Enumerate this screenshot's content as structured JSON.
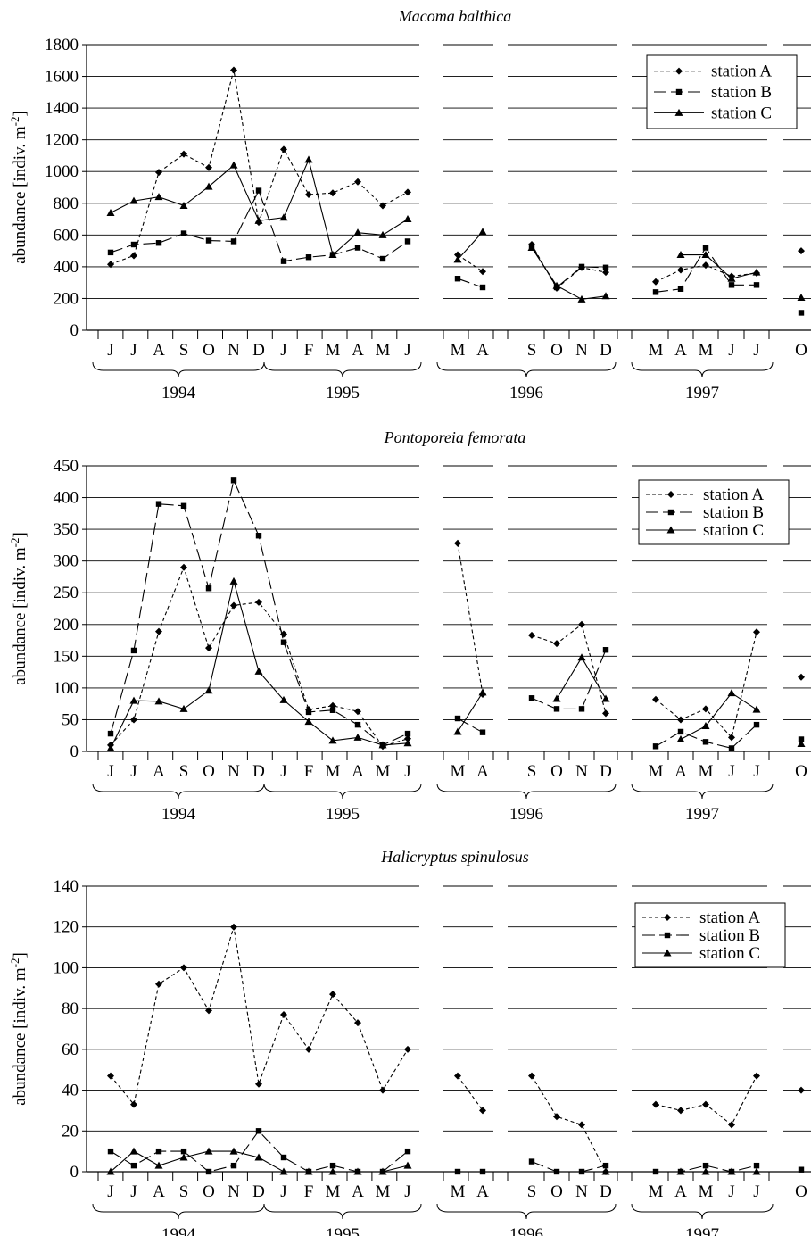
{
  "figure": {
    "ylabel_prefix": "abundance [indiv. m",
    "ylabel_exp": "-2",
    "ylabel_suffix": "]"
  },
  "chart_data": [
    {
      "type": "line",
      "title": "Macoma balthica",
      "ylabel": "abundance [indiv. m-2]",
      "ylim": [
        0,
        1800
      ],
      "yticks": [
        0,
        200,
        400,
        600,
        800,
        1000,
        1200,
        1400,
        1600,
        1800
      ],
      "grid": true,
      "legend": "top-right",
      "month_labels": [
        "J",
        "J",
        "A",
        "S",
        "O",
        "N",
        "D",
        "J",
        "F",
        "M",
        "A",
        "M",
        "J",
        "M",
        "A",
        "S",
        "O",
        "N",
        "D",
        "M",
        "A",
        "M",
        "J",
        "J",
        "O"
      ],
      "year_labels": [
        "1994",
        "1995",
        "1996",
        "1997"
      ],
      "series": [
        {
          "name": "station A",
          "marker": "diamond",
          "dash": "dotted",
          "values": [
            415,
            470,
            995,
            1110,
            1025,
            1640,
            680,
            1140,
            855,
            865,
            935,
            785,
            870,
            475,
            370,
            540,
            265,
            395,
            365,
            305,
            380,
            410,
            340,
            360,
            500
          ]
        },
        {
          "name": "station B",
          "marker": "square",
          "dash": "dashed",
          "values": [
            490,
            540,
            550,
            610,
            565,
            560,
            880,
            435,
            460,
            475,
            520,
            450,
            560,
            325,
            270,
            530,
            270,
            400,
            395,
            240,
            260,
            520,
            285,
            285,
            110
          ]
        },
        {
          "name": "station C",
          "marker": "triangle",
          "dash": "solid",
          "values": [
            740,
            815,
            840,
            785,
            905,
            1040,
            690,
            710,
            1075,
            475,
            615,
            600,
            700,
            445,
            620,
            520,
            280,
            195,
            215,
            null,
            475,
            475,
            325,
            365,
            205
          ]
        }
      ]
    },
    {
      "type": "line",
      "title": "Pontoporeia femorata",
      "ylabel": "abundance [indiv. m-2]",
      "ylim": [
        0,
        450
      ],
      "yticks": [
        0,
        50,
        100,
        150,
        200,
        250,
        300,
        350,
        400,
        450
      ],
      "grid": true,
      "legend": "top-right",
      "month_labels": [
        "J",
        "J",
        "A",
        "S",
        "O",
        "N",
        "D",
        "J",
        "F",
        "M",
        "A",
        "M",
        "J",
        "M",
        "A",
        "S",
        "O",
        "N",
        "D",
        "M",
        "A",
        "M",
        "J",
        "J",
        "O"
      ],
      "year_labels": [
        "1994",
        "1995",
        "1996",
        "1997"
      ],
      "series": [
        {
          "name": "station A",
          "marker": "diamond",
          "dash": "dotted",
          "values": [
            10,
            50,
            189,
            290,
            163,
            230,
            235,
            185,
            66,
            72,
            63,
            8,
            20,
            328,
            90,
            183,
            170,
            200,
            60,
            82,
            50,
            67,
            22,
            188,
            117
          ]
        },
        {
          "name": "station B",
          "marker": "square",
          "dash": "dashed",
          "values": [
            28,
            159,
            390,
            387,
            257,
            427,
            340,
            172,
            62,
            65,
            42,
            10,
            28,
            52,
            30,
            84,
            67,
            67,
            160,
            8,
            31,
            15,
            5,
            42,
            19
          ]
        },
        {
          "name": "station C",
          "marker": "triangle",
          "dash": "solid",
          "values": [
            5,
            80,
            79,
            67,
            96,
            268,
            126,
            81,
            47,
            17,
            22,
            10,
            13,
            31,
            93,
            null,
            83,
            148,
            83,
            null,
            19,
            40,
            92,
            66,
            12
          ]
        }
      ]
    },
    {
      "type": "line",
      "title": "Halicryptus spinulosus",
      "ylabel": "abundance [indiv. m-2]",
      "ylim": [
        0,
        140
      ],
      "yticks": [
        0,
        20,
        40,
        60,
        80,
        100,
        120,
        140
      ],
      "grid": true,
      "legend": "top-right",
      "month_labels": [
        "J",
        "J",
        "A",
        "S",
        "O",
        "N",
        "D",
        "J",
        "F",
        "M",
        "A",
        "M",
        "J",
        "M",
        "A",
        "S",
        "O",
        "N",
        "D",
        "M",
        "A",
        "M",
        "J",
        "J",
        "O"
      ],
      "year_labels": [
        "1994",
        "1995",
        "1996",
        "1997"
      ],
      "series": [
        {
          "name": "station A",
          "marker": "diamond",
          "dash": "dotted",
          "values": [
            47,
            33,
            92,
            100,
            79,
            120,
            43,
            77,
            60,
            87,
            73,
            40,
            60,
            47,
            30,
            47,
            27,
            23,
            0,
            33,
            30,
            33,
            23,
            47,
            40
          ]
        },
        {
          "name": "station B",
          "marker": "square",
          "dash": "dashed",
          "values": [
            10,
            3,
            10,
            10,
            0,
            3,
            20,
            7,
            0,
            3,
            0,
            0,
            10,
            0,
            0,
            5,
            0,
            0,
            3,
            0,
            0,
            3,
            0,
            3,
            1
          ]
        },
        {
          "name": "station C",
          "marker": "triangle",
          "dash": "solid",
          "values": [
            0,
            10,
            3,
            7,
            10,
            10,
            7,
            0,
            0,
            0,
            0,
            0,
            3,
            null,
            null,
            null,
            null,
            null,
            0,
            null,
            0,
            0,
            0,
            0,
            null
          ]
        }
      ]
    }
  ]
}
